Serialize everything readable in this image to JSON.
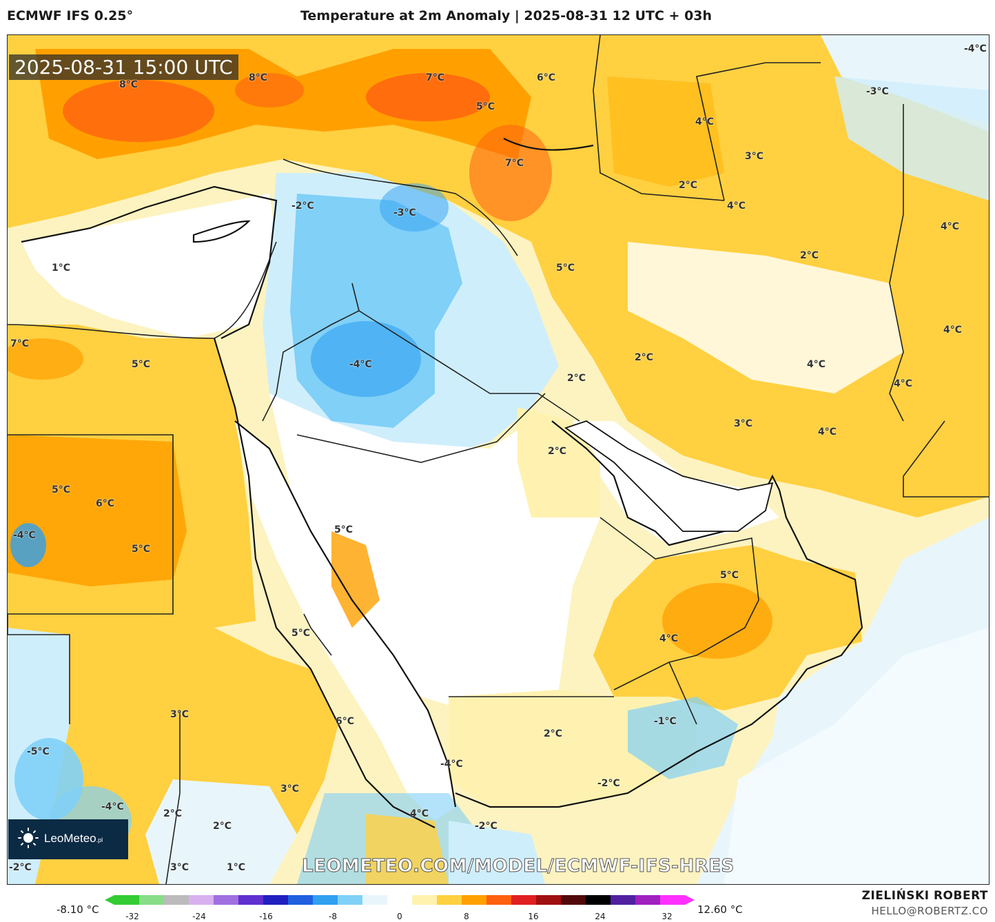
{
  "header": {
    "model": "ECMWF IFS 0.25°",
    "title": "Temperature at 2m Anomaly | 2025-08-31 12 UTC + 03h"
  },
  "map": {
    "timestamp": "2025-08-31 15:00 UTC",
    "url": "LEOMETEO.COM/MODEL/ECMWF-IFS-HRES",
    "logo_text": "LeoMeteo",
    "logo_suffix": ".pl",
    "labels": [
      {
        "text": "8°C"
      },
      {
        "text": "8°C"
      },
      {
        "text": "7°C"
      },
      {
        "text": "6°C"
      },
      {
        "text": "5°C"
      },
      {
        "text": "-4°C"
      },
      {
        "text": "-3°C"
      },
      {
        "text": "4°C"
      },
      {
        "text": "7°C"
      },
      {
        "text": "3°C"
      },
      {
        "text": "2°C"
      },
      {
        "text": "-2°C"
      },
      {
        "text": "-3°C"
      },
      {
        "text": "4°C"
      },
      {
        "text": "4°C"
      },
      {
        "text": "1°C"
      },
      {
        "text": "2°C"
      },
      {
        "text": "5°C"
      },
      {
        "text": "4°C"
      },
      {
        "text": "7°C"
      },
      {
        "text": "5°C"
      },
      {
        "text": "-4°C"
      },
      {
        "text": "2°C"
      },
      {
        "text": "4°C"
      },
      {
        "text": "4°C"
      },
      {
        "text": "2°C"
      },
      {
        "text": "3°C"
      },
      {
        "text": "4°C"
      },
      {
        "text": "5°C"
      },
      {
        "text": "6°C"
      },
      {
        "text": "2°C"
      },
      {
        "text": "-4°C"
      },
      {
        "text": "5°C"
      },
      {
        "text": "5°C"
      },
      {
        "text": "5°C"
      },
      {
        "text": "4°C"
      },
      {
        "text": "5°C"
      },
      {
        "text": "3°C"
      },
      {
        "text": "6°C"
      },
      {
        "text": "-1°C"
      },
      {
        "text": "-5°C"
      },
      {
        "text": "2°C"
      },
      {
        "text": "-4°C"
      },
      {
        "text": "-2°C"
      },
      {
        "text": "3°C"
      },
      {
        "text": "-4°C"
      },
      {
        "text": "2°C"
      },
      {
        "text": "2°C"
      },
      {
        "text": "4°C"
      },
      {
        "text": "-2°C"
      },
      {
        "text": "-2°C"
      },
      {
        "text": "3°C"
      },
      {
        "text": "1°C"
      }
    ]
  },
  "colorbar": {
    "min_label": "-8.10 °C",
    "max_label": "12.60 °C",
    "ticks": [
      "-32",
      "-24",
      "-16",
      "-8",
      "0",
      "8",
      "16",
      "24",
      "32"
    ],
    "colors": [
      "#33cc33",
      "#88dd88",
      "#bbbbbb",
      "#d8b0f0",
      "#a070e0",
      "#6030d0",
      "#2020c0",
      "#2060e0",
      "#30a0f0",
      "#80d0f8",
      "#e8f6fc",
      "#ffffff",
      "#fff2b0",
      "#ffd040",
      "#ffa000",
      "#ff6010",
      "#e02020",
      "#a01010",
      "#500808",
      "#000000",
      "#5020a0",
      "#a020c0",
      "#ff30ff"
    ]
  },
  "footer": {
    "author": "ZIELIŃSKI ROBERT",
    "email": "HELLO@ROBERTZ.CO"
  }
}
